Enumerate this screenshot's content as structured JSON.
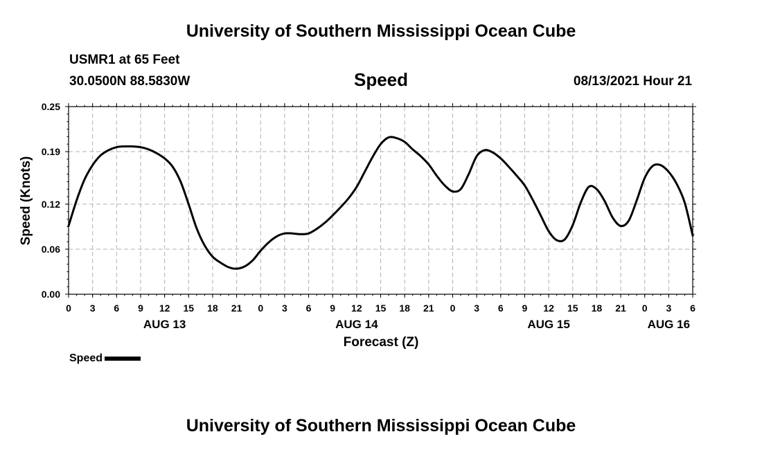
{
  "header": {
    "title_top": "University of Southern Mississippi Ocean Cube",
    "station": "USMR1 at 65 Feet",
    "coordinates": "30.0500N  88.5830W",
    "variable": "Speed",
    "date": "08/13/2021 Hour 21"
  },
  "footer": {
    "title_bottom": "University of Southern Mississippi Ocean Cube"
  },
  "legend": {
    "label": "Speed"
  },
  "chart_data": {
    "type": "line",
    "title": "Speed",
    "xlabel": "Forecast (Z)",
    "ylabel": "Speed (Knots)",
    "xlim": [
      0,
      78
    ],
    "ylim": [
      0,
      0.25
    ],
    "yticks": [
      0.0,
      0.06,
      0.12,
      0.19,
      0.25
    ],
    "ytick_labels": [
      "0.00",
      "0.06",
      "0.12",
      "0.19",
      "0.25"
    ],
    "xticks": [
      0,
      3,
      6,
      9,
      12,
      15,
      18,
      21,
      24,
      27,
      30,
      33,
      36,
      39,
      42,
      45,
      48,
      51,
      54,
      57,
      60,
      63,
      66,
      69,
      72,
      75,
      78
    ],
    "xtick_labels": [
      "0",
      "3",
      "6",
      "9",
      "12",
      "15",
      "18",
      "21",
      "0",
      "3",
      "6",
      "9",
      "12",
      "15",
      "18",
      "21",
      "0",
      "3",
      "6",
      "9",
      "12",
      "15",
      "18",
      "21",
      "0",
      "3",
      "6"
    ],
    "date_labels": [
      {
        "x": 12,
        "label": "AUG 13"
      },
      {
        "x": 36,
        "label": "AUG 14"
      },
      {
        "x": 60,
        "label": "AUG 15"
      },
      {
        "x": 75,
        "label": "AUG 16"
      }
    ],
    "grid": true,
    "series": [
      {
        "name": "Speed",
        "x": [
          0,
          1,
          2,
          3,
          4,
          5,
          6,
          7,
          8,
          9,
          10,
          11,
          12,
          13,
          14,
          15,
          16,
          17,
          18,
          19,
          20,
          21,
          22,
          23,
          24,
          25,
          26,
          27,
          28,
          29,
          30,
          31,
          32,
          33,
          34,
          35,
          36,
          37,
          38,
          39,
          40,
          41,
          42,
          43,
          44,
          45,
          46,
          47,
          48,
          49,
          50,
          51,
          52,
          53,
          54,
          55,
          56,
          57,
          58,
          59,
          60,
          61,
          62,
          63,
          64,
          65,
          66,
          67,
          68,
          69,
          70,
          71,
          72,
          73,
          74,
          75,
          76,
          77,
          78
        ],
        "values": [
          0.091,
          0.125,
          0.153,
          0.172,
          0.185,
          0.192,
          0.196,
          0.197,
          0.197,
          0.196,
          0.193,
          0.188,
          0.181,
          0.17,
          0.15,
          0.12,
          0.088,
          0.065,
          0.05,
          0.042,
          0.036,
          0.034,
          0.037,
          0.045,
          0.058,
          0.069,
          0.077,
          0.081,
          0.081,
          0.08,
          0.081,
          0.087,
          0.095,
          0.105,
          0.116,
          0.128,
          0.143,
          0.163,
          0.183,
          0.2,
          0.209,
          0.208,
          0.203,
          0.193,
          0.184,
          0.173,
          0.158,
          0.145,
          0.137,
          0.14,
          0.16,
          0.184,
          0.192,
          0.189,
          0.181,
          0.17,
          0.158,
          0.145,
          0.126,
          0.105,
          0.084,
          0.072,
          0.073,
          0.092,
          0.122,
          0.143,
          0.14,
          0.124,
          0.102,
          0.091,
          0.098,
          0.125,
          0.155,
          0.171,
          0.172,
          0.163,
          0.147,
          0.122,
          0.078
        ]
      }
    ]
  }
}
